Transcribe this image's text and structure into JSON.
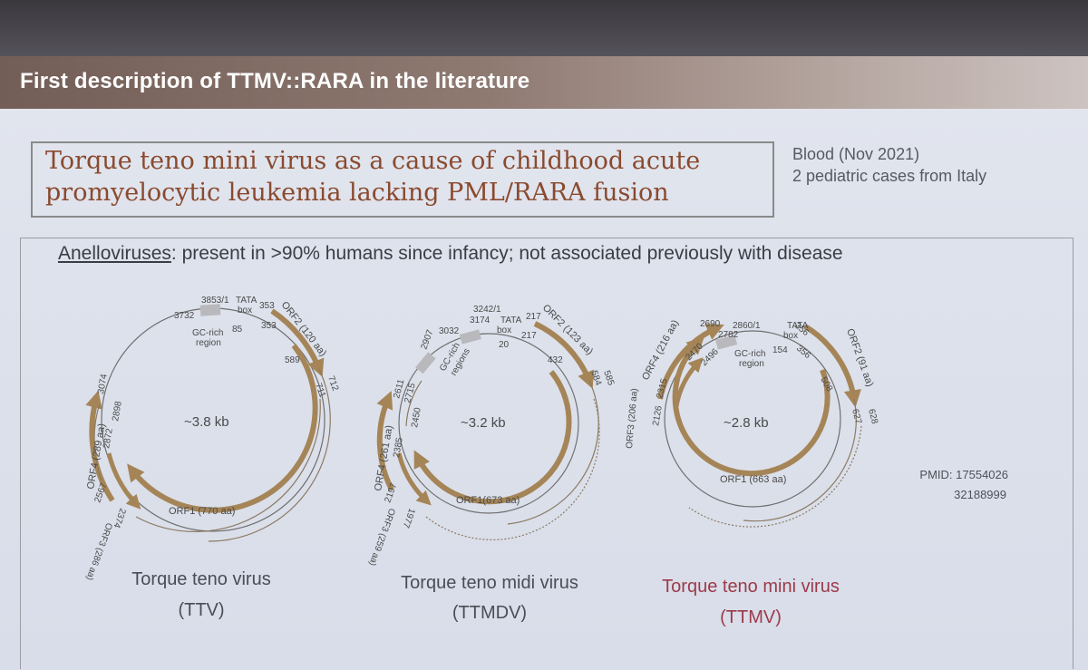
{
  "slide": {
    "title": "First description of TTMV::RARA in the literature",
    "paper_title_line1": "Torque teno mini virus as a cause of childhood acute",
    "paper_title_line2": "promyelocytic leukemia lacking PML/RARA fusion",
    "journal": "Blood (Nov 2021)",
    "cases": "2 pediatric cases from Italy",
    "caption_term": "Anelloviruses",
    "caption_rest": ": present in >90% humans since infancy; not associated previously with disease",
    "pmid_label": "PMID: 17554026",
    "pmid_second": "32188999"
  },
  "viruses": [
    {
      "name": "Torque teno virus",
      "abbr": "(TTV)",
      "size": "~3.8 kb",
      "orf1": "ORF1 (770 aa)",
      "orf2": "ORF2 (120 aa)",
      "orf3": "ORF3 (286 aa)",
      "orf4": "ORF4 (289 aa)",
      "labels": {
        "origin": "3853/1",
        "tata": "TATA",
        "box": "box",
        "n85": "85",
        "n3732": "3732",
        "gc1": "GC-rich",
        "gc2": "region",
        "n353a": "353",
        "n353b": "353",
        "n589": "589",
        "n712": "712",
        "n711": "711",
        "n3074": "3074",
        "n2898": "2898",
        "n2872": "2872",
        "n2567": "2567",
        "n2374": "2374"
      },
      "color": "#a58557"
    },
    {
      "name": "Torque teno midi virus",
      "abbr": "(TTMDV)",
      "size": "~3.2 kb",
      "orf1": "ORF1(673 aa)",
      "orf2": "ORF2 (123 aa)",
      "orf3": "ORF3 (259 aa)",
      "orf4": "ORF4 (261 aa)",
      "labels": {
        "origin": "3242/1",
        "tata": "TATA",
        "box": "box",
        "n20": "20",
        "n3032": "3032",
        "n3174": "3174",
        "n217a": "217",
        "n217b": "217",
        "n2907": "2907",
        "gc1": "GC-rich",
        "gc2": "regions",
        "n432": "432",
        "n584": "584",
        "n585": "585",
        "n2611": "2611",
        "n2715": "2715",
        "n2450": "2450",
        "n2385": "2385",
        "n2197": "2197",
        "n1977": "1977"
      },
      "color": "#a58557"
    },
    {
      "name": "Torque teno mini virus",
      "abbr": "(TTMV)",
      "size": "~2.8 kb",
      "orf1": "ORF1 (663 aa)",
      "orf2": "ORF2 (91 aa)",
      "orf3": "ORF3 (206 aa)",
      "orf4": "ORF4 (216 aa)",
      "labels": {
        "origin": "2860/1",
        "tata": "TATA",
        "box": "box",
        "n154": "154",
        "n2690": "2690",
        "n2782": "2782",
        "gc1": "GC-rich",
        "gc2": "region",
        "n2470": "2470",
        "n2496": "2496",
        "n2315": "2315",
        "n2126": "2126",
        "n356a": "356",
        "n356b": "356",
        "n508": "508",
        "n627": "627",
        "n628": "628"
      },
      "color": "#a58557"
    }
  ],
  "colors": {
    "title_bar": "#8f7a72",
    "paper_title": "#8a4a2e",
    "orf_arrow": "#a58557",
    "ttmv_label": "#9c3a4a"
  }
}
